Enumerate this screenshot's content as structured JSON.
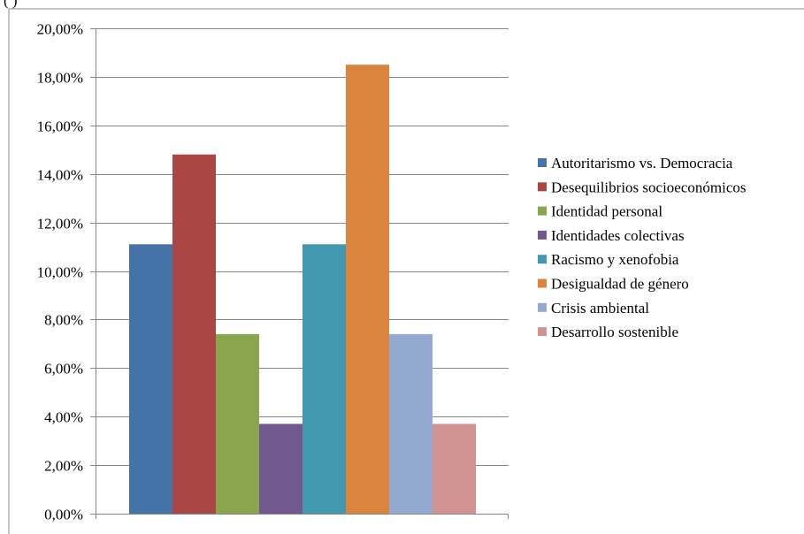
{
  "header_fragment": "(        )",
  "chart_data": {
    "type": "bar",
    "categories": [
      "Autoritarismo vs. Democracia",
      "Desequilibrios socioeconómicos",
      "Identidad personal",
      "Identidades colectivas",
      "Racismo y xenofobia",
      "Desigualdad de género",
      "Crisis ambiental",
      "Desarrollo sostenible"
    ],
    "values": [
      11.1,
      14.8,
      7.4,
      3.7,
      11.1,
      18.5,
      7.4,
      3.7
    ],
    "colors": [
      "#4572A7",
      "#AA4643",
      "#89A54E",
      "#71588F",
      "#4198AF",
      "#DB843D",
      "#93A9CF",
      "#D19392"
    ],
    "ylim": [
      0,
      20
    ],
    "yticks": [
      0,
      2,
      4,
      6,
      8,
      10,
      12,
      14,
      16,
      18,
      20
    ],
    "ytick_labels": [
      "0,00%",
      "2,00%",
      "4,00%",
      "6,00%",
      "8,00%",
      "10,00%",
      "12,00%",
      "14,00%",
      "16,00%",
      "18,00%",
      "20,00%"
    ],
    "grid": true,
    "legend_position": "right",
    "title": "",
    "xlabel": "",
    "ylabel": ""
  }
}
